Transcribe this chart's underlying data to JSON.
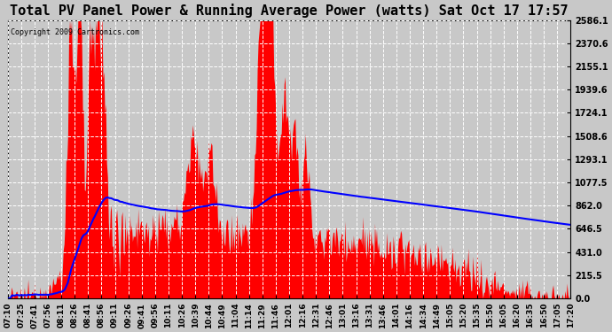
{
  "title": "Total PV Panel Power & Running Average Power (watts) Sat Oct 17 17:57",
  "copyright": "Copyright 2009 Cartronics.com",
  "bg_color": "#c8c8c8",
  "plot_bg_color": "#c8c8c8",
  "y_ticks": [
    0.0,
    215.5,
    431.0,
    646.5,
    862.0,
    1077.5,
    1293.1,
    1508.6,
    1724.1,
    1939.6,
    2155.1,
    2370.6,
    2586.1
  ],
  "x_labels": [
    "07:10",
    "07:25",
    "07:41",
    "07:56",
    "08:11",
    "08:26",
    "08:41",
    "08:56",
    "09:11",
    "09:26",
    "09:41",
    "09:56",
    "10:11",
    "10:26",
    "10:39",
    "10:44",
    "10:49",
    "11:04",
    "11:14",
    "11:29",
    "11:46",
    "12:01",
    "12:16",
    "12:31",
    "12:46",
    "13:01",
    "13:16",
    "13:31",
    "13:46",
    "14:01",
    "14:16",
    "14:34",
    "14:49",
    "15:05",
    "15:20",
    "15:35",
    "15:50",
    "16:05",
    "16:20",
    "16:35",
    "16:50",
    "17:05",
    "17:20"
  ],
  "bar_color": "#ff0000",
  "line_color": "#0000ff",
  "grid_color": "#ffffff",
  "ymax": 2586.1,
  "title_fontsize": 11
}
